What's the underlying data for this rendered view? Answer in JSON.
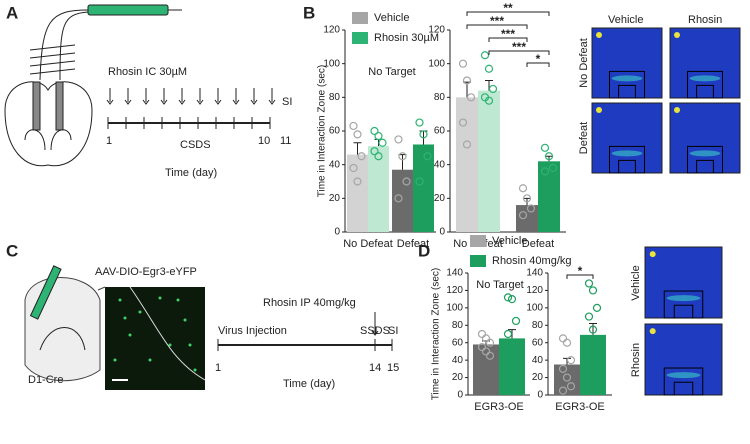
{
  "figure": {
    "panel_a": {
      "letter": "A",
      "treatment": "Rhosin IC 30µM",
      "si": "SI",
      "day_start": "1",
      "protocol": "CSDS",
      "day_end": "10",
      "day_si": "11",
      "time_label": "Time (day)"
    },
    "panel_b": {
      "letter": "B",
      "heatmap_columns": [
        "Vehicle",
        "Rhosin"
      ],
      "heatmap_rows": [
        "No Defeat",
        "Defeat"
      ]
    },
    "panel_c": {
      "letter": "C",
      "virus": "AAV-DIO-Egr3-eYFP",
      "mouse": "D1-Cre",
      "treatment": "Rhosin IP 40mg/kg",
      "injection": "Virus Injection",
      "protocol": "SSDS",
      "si": "SI",
      "day_start": "1",
      "day_protocol": "14",
      "day_si": "15",
      "time_label": "Time (day)"
    },
    "panel_d": {
      "letter": "D",
      "heatmap_rows": [
        "Vehicle",
        "Rhosin"
      ]
    }
  },
  "chart_data": [
    {
      "type": "bar",
      "title": "No Target",
      "ylabel": "Time in Interaction Zone (sec)",
      "legend": "top",
      "categories": [
        "No Defeat",
        "Defeat"
      ],
      "ylim": [
        0,
        120
      ],
      "yticks": [
        0,
        20,
        40,
        60,
        80,
        100,
        120
      ],
      "series": [
        {
          "name": "Vehicle",
          "color": "#a6a6a6",
          "colors": [
            "#d3d3d3",
            "#6b6b6b"
          ],
          "values": [
            46,
            37
          ],
          "errors": [
            7,
            9
          ],
          "points": [
            [
              63,
              58,
              45,
              38,
              30
            ],
            [
              55,
              45,
              30,
              20
            ]
          ]
        },
        {
          "name": "Rhosin 30µM",
          "color": "#2db373",
          "colors": [
            "#bfe8d3",
            "#1e9e5e"
          ],
          "values": [
            51,
            52
          ],
          "errors": [
            4,
            8
          ],
          "points": [
            [
              60,
              57,
              53,
              48,
              45
            ],
            [
              65,
              58,
              45,
              30
            ]
          ]
        }
      ]
    },
    {
      "type": "bar",
      "categories": [
        "No Defeat",
        "Defeat"
      ],
      "ylim": [
        0,
        120
      ],
      "yticks": [
        0,
        20,
        40,
        60,
        80,
        100,
        120
      ],
      "significance": [
        "**",
        "***",
        "***",
        "***",
        "*"
      ],
      "series": [
        {
          "name": "Vehicle",
          "color": "#a6a6a6",
          "colors": [
            "#d3d3d3",
            "#6b6b6b"
          ],
          "values": [
            80,
            16
          ],
          "errors": [
            9,
            4
          ],
          "points": [
            [
              100,
              90,
              80,
              65,
              52
            ],
            [
              26,
              20,
              14,
              10
            ]
          ]
        },
        {
          "name": "Rhosin 30µM",
          "color": "#2db373",
          "colors": [
            "#bfe8d3",
            "#1e9e5e"
          ],
          "values": [
            84,
            42
          ],
          "errors": [
            6,
            3
          ],
          "points": [
            [
              105,
              97,
              85,
              80,
              78
            ],
            [
              50,
              45,
              38,
              36
            ]
          ]
        }
      ]
    },
    {
      "type": "bar",
      "title": "No Target",
      "ylabel": "Time in Interaction Zone (sec)",
      "legend": "top",
      "categories": [
        "EGR3-OE"
      ],
      "ylim": [
        0,
        140
      ],
      "yticks": [
        0,
        20,
        40,
        60,
        80,
        100,
        120,
        140
      ],
      "series": [
        {
          "name": "Vehicle",
          "color": "#a6a6a6",
          "colors": [
            "#6b6b6b"
          ],
          "values": [
            58
          ],
          "errors": [
            4
          ],
          "points": [
            [
              70,
              65,
              60,
              55,
              50,
              45
            ]
          ]
        },
        {
          "name": "Rhosin 40mg/kg",
          "color": "#1e9e5e",
          "colors": [
            "#1e9e5e"
          ],
          "values": [
            65
          ],
          "errors": [
            10
          ],
          "points": [
            [
              112,
              110,
              85,
              70,
              60,
              50,
              35,
              15
            ]
          ]
        }
      ]
    },
    {
      "type": "bar",
      "categories": [
        "EGR3-OE"
      ],
      "ylim": [
        0,
        140
      ],
      "yticks": [
        0,
        20,
        40,
        60,
        80,
        100,
        120,
        140
      ],
      "significance": [
        "*"
      ],
      "series": [
        {
          "name": "Vehicle",
          "color": "#a6a6a6",
          "colors": [
            "#6b6b6b"
          ],
          "values": [
            35
          ],
          "errors": [
            7
          ],
          "points": [
            [
              65,
              60,
              40,
              30,
              20,
              10,
              5
            ]
          ]
        },
        {
          "name": "Rhosin 40mg/kg",
          "color": "#1e9e5e",
          "colors": [
            "#1e9e5e"
          ],
          "values": [
            69
          ],
          "errors": [
            13
          ],
          "points": [
            [
              128,
              120,
              100,
              90,
              75,
              60,
              50,
              40,
              30
            ]
          ]
        }
      ]
    }
  ]
}
